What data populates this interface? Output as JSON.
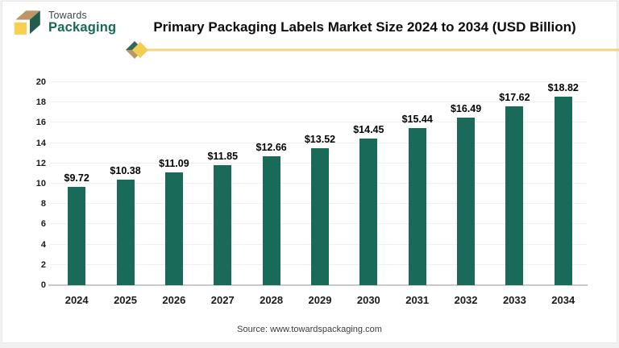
{
  "page": {
    "title": "Primary Packaging Labels Market Size 2024 to 2034 (USD Billion)",
    "source": "Source: www.towardspackaging.com"
  },
  "logo": {
    "line1": "Towards",
    "line2": "Packaging",
    "colors": {
      "cube_top": "#bd9566",
      "cube_side": "#215c4c",
      "cube_front": "#f6d14f",
      "text_top": "#3f4549",
      "text_bottom": "#17695a"
    }
  },
  "decor": {
    "line_color": "#f1d47e",
    "diamond_front": "#f4ce52",
    "diamond_back_top": "#2e6b57",
    "diamond_back_bottom": "#bd9566"
  },
  "chart_data": {
    "type": "bar",
    "title": "Primary Packaging Labels Market Size 2024 to 2034 (USD Billion)",
    "categories": [
      "2024",
      "2025",
      "2026",
      "2027",
      "2028",
      "2029",
      "2030",
      "2031",
      "2032",
      "2033",
      "2034"
    ],
    "values": [
      9.72,
      10.38,
      11.09,
      11.85,
      12.66,
      13.52,
      14.45,
      15.44,
      16.49,
      17.62,
      18.82
    ],
    "labels": [
      "$9.72",
      "$10.38",
      "$11.09",
      "$11.85",
      "$12.66",
      "$13.52",
      "$14.45",
      "$15.44",
      "$16.49",
      "$17.62",
      "$18.82"
    ],
    "xlabel": "",
    "ylabel": "",
    "ylim": [
      0,
      20
    ],
    "yticks": [
      0,
      2,
      4,
      6,
      8,
      10,
      12,
      14,
      16,
      18,
      20
    ],
    "bar_color": "#196a59",
    "grid": true,
    "legend": false
  }
}
